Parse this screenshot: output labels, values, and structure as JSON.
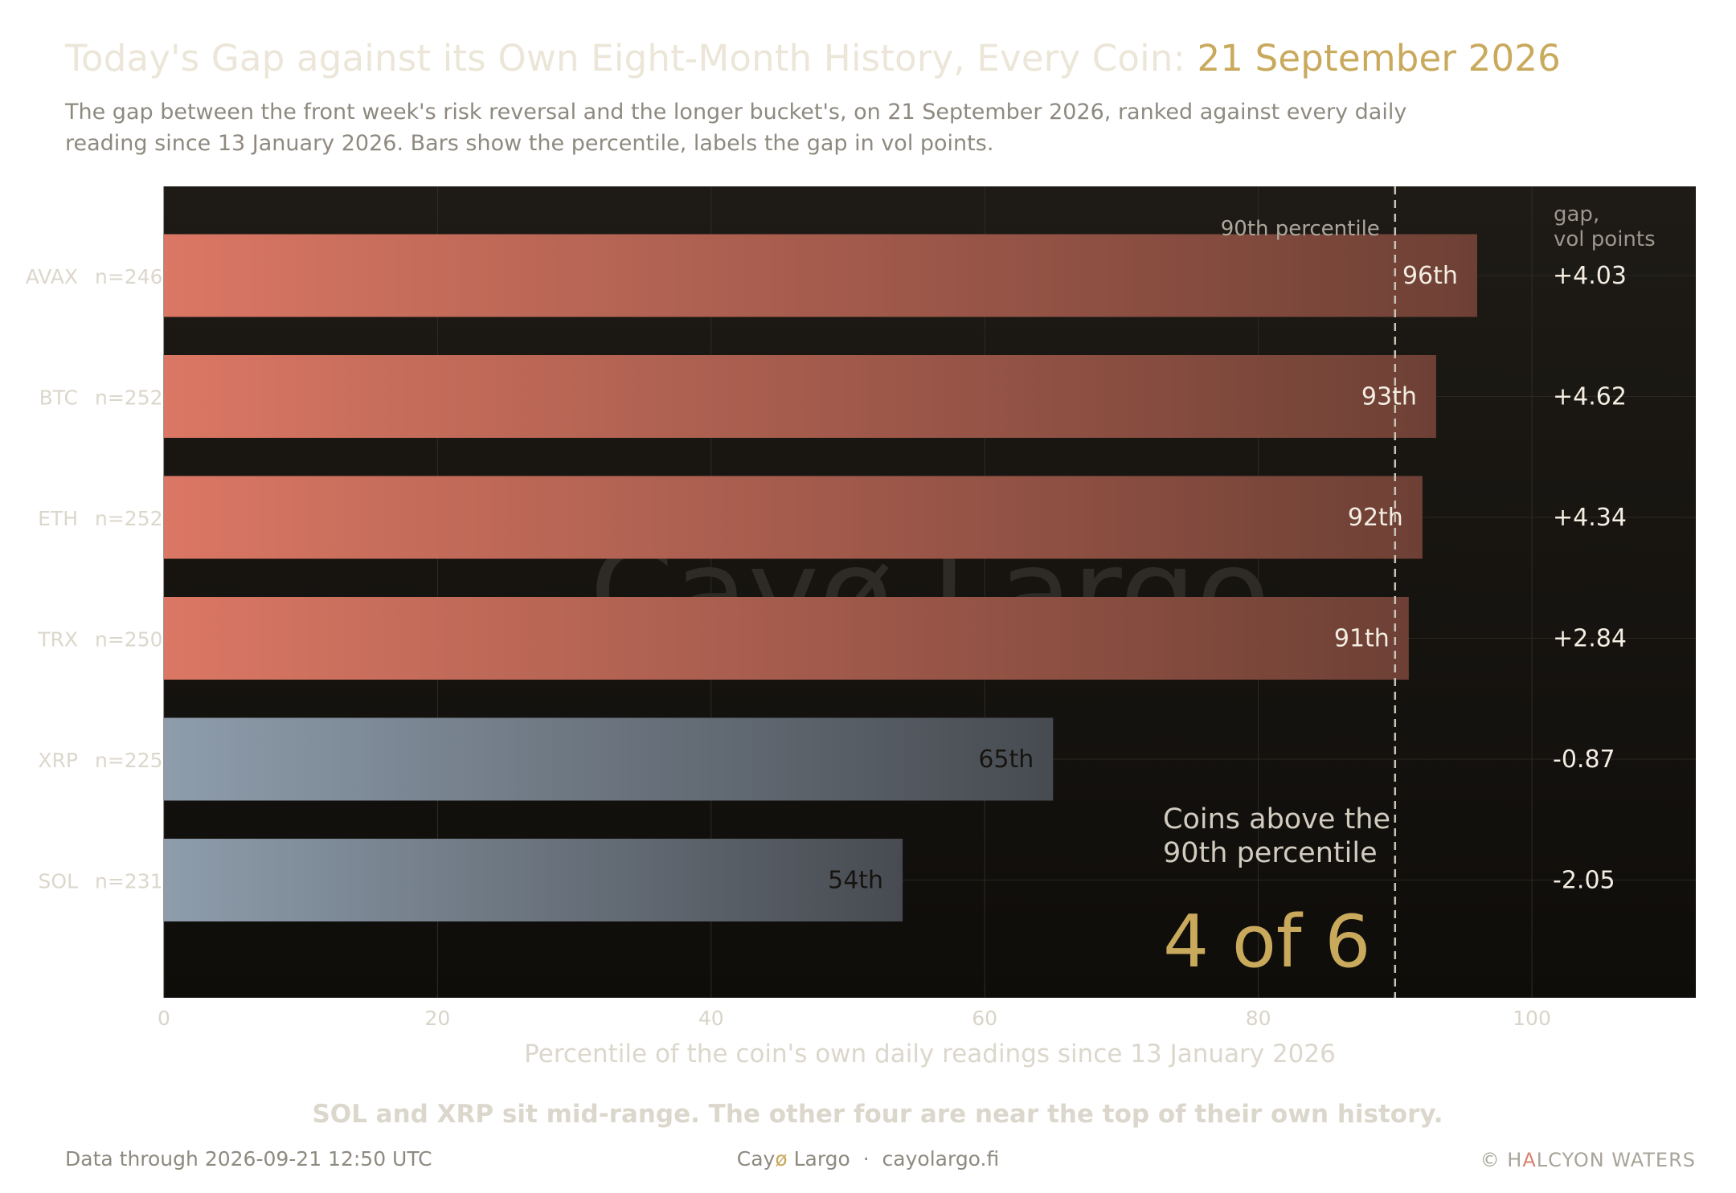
{
  "header": {
    "title_prefix": "Today's Gap against its Own Eight-Month History, Every Coin: ",
    "title_date": "21 September 2026",
    "subtitle": "The gap between the front week's risk reversal and the longer bucket's, on 21 September 2026, ranked against every daily reading since 13 January 2026. Bars show the percentile, labels the gap in vol points."
  },
  "chart_data": {
    "type": "bar",
    "orientation": "horizontal",
    "categories": [
      "AVAX",
      "BTC",
      "ETH",
      "TRX",
      "XRP",
      "SOL"
    ],
    "sample_sizes": [
      "n=246",
      "n=252",
      "n=252",
      "n=250",
      "n=225",
      "n=231"
    ],
    "values": [
      96,
      93,
      92,
      91,
      65,
      54
    ],
    "value_labels": [
      "96th",
      "93th",
      "92th",
      "91th",
      "65th",
      "54th"
    ],
    "gap_labels": [
      "+4.03",
      "+4.62",
      "+4.34",
      "+2.84",
      "-0.87",
      "-2.05"
    ],
    "gap_column_header": [
      "gap,",
      "vol points"
    ],
    "xlabel": "Percentile of the coin's own daily readings since 13 January 2026",
    "xlim": [
      0,
      112
    ],
    "xticks": [
      0,
      20,
      40,
      60,
      80,
      100
    ],
    "reference_line": {
      "value": 90,
      "label": "90th percentile"
    },
    "callout": {
      "text_lines": [
        "Coins above the",
        "90th percentile"
      ],
      "value": "4 of 6"
    },
    "watermark": "Cayø Largo",
    "takeaway": "SOL and XRP sit mid-range. The other four are near the top of their own history.",
    "grid": true,
    "colors": {
      "above_start": "#db7764",
      "above_end": "#6e4035",
      "below_start": "#8e9dac",
      "below_end": "#474b51",
      "accent": "#c9a95c",
      "plot_bg": "#1b1814"
    }
  },
  "footer": {
    "data_through": "Data through 2026-09-21 12:50 UTC",
    "brand_prefix": "Cay",
    "brand_o": "ø",
    "brand_rest": " Largo  ·  cayolargo.fi",
    "copyright_prefix": "© H",
    "copyright_a": "A",
    "copyright_rest": "LCYON WATERS"
  }
}
